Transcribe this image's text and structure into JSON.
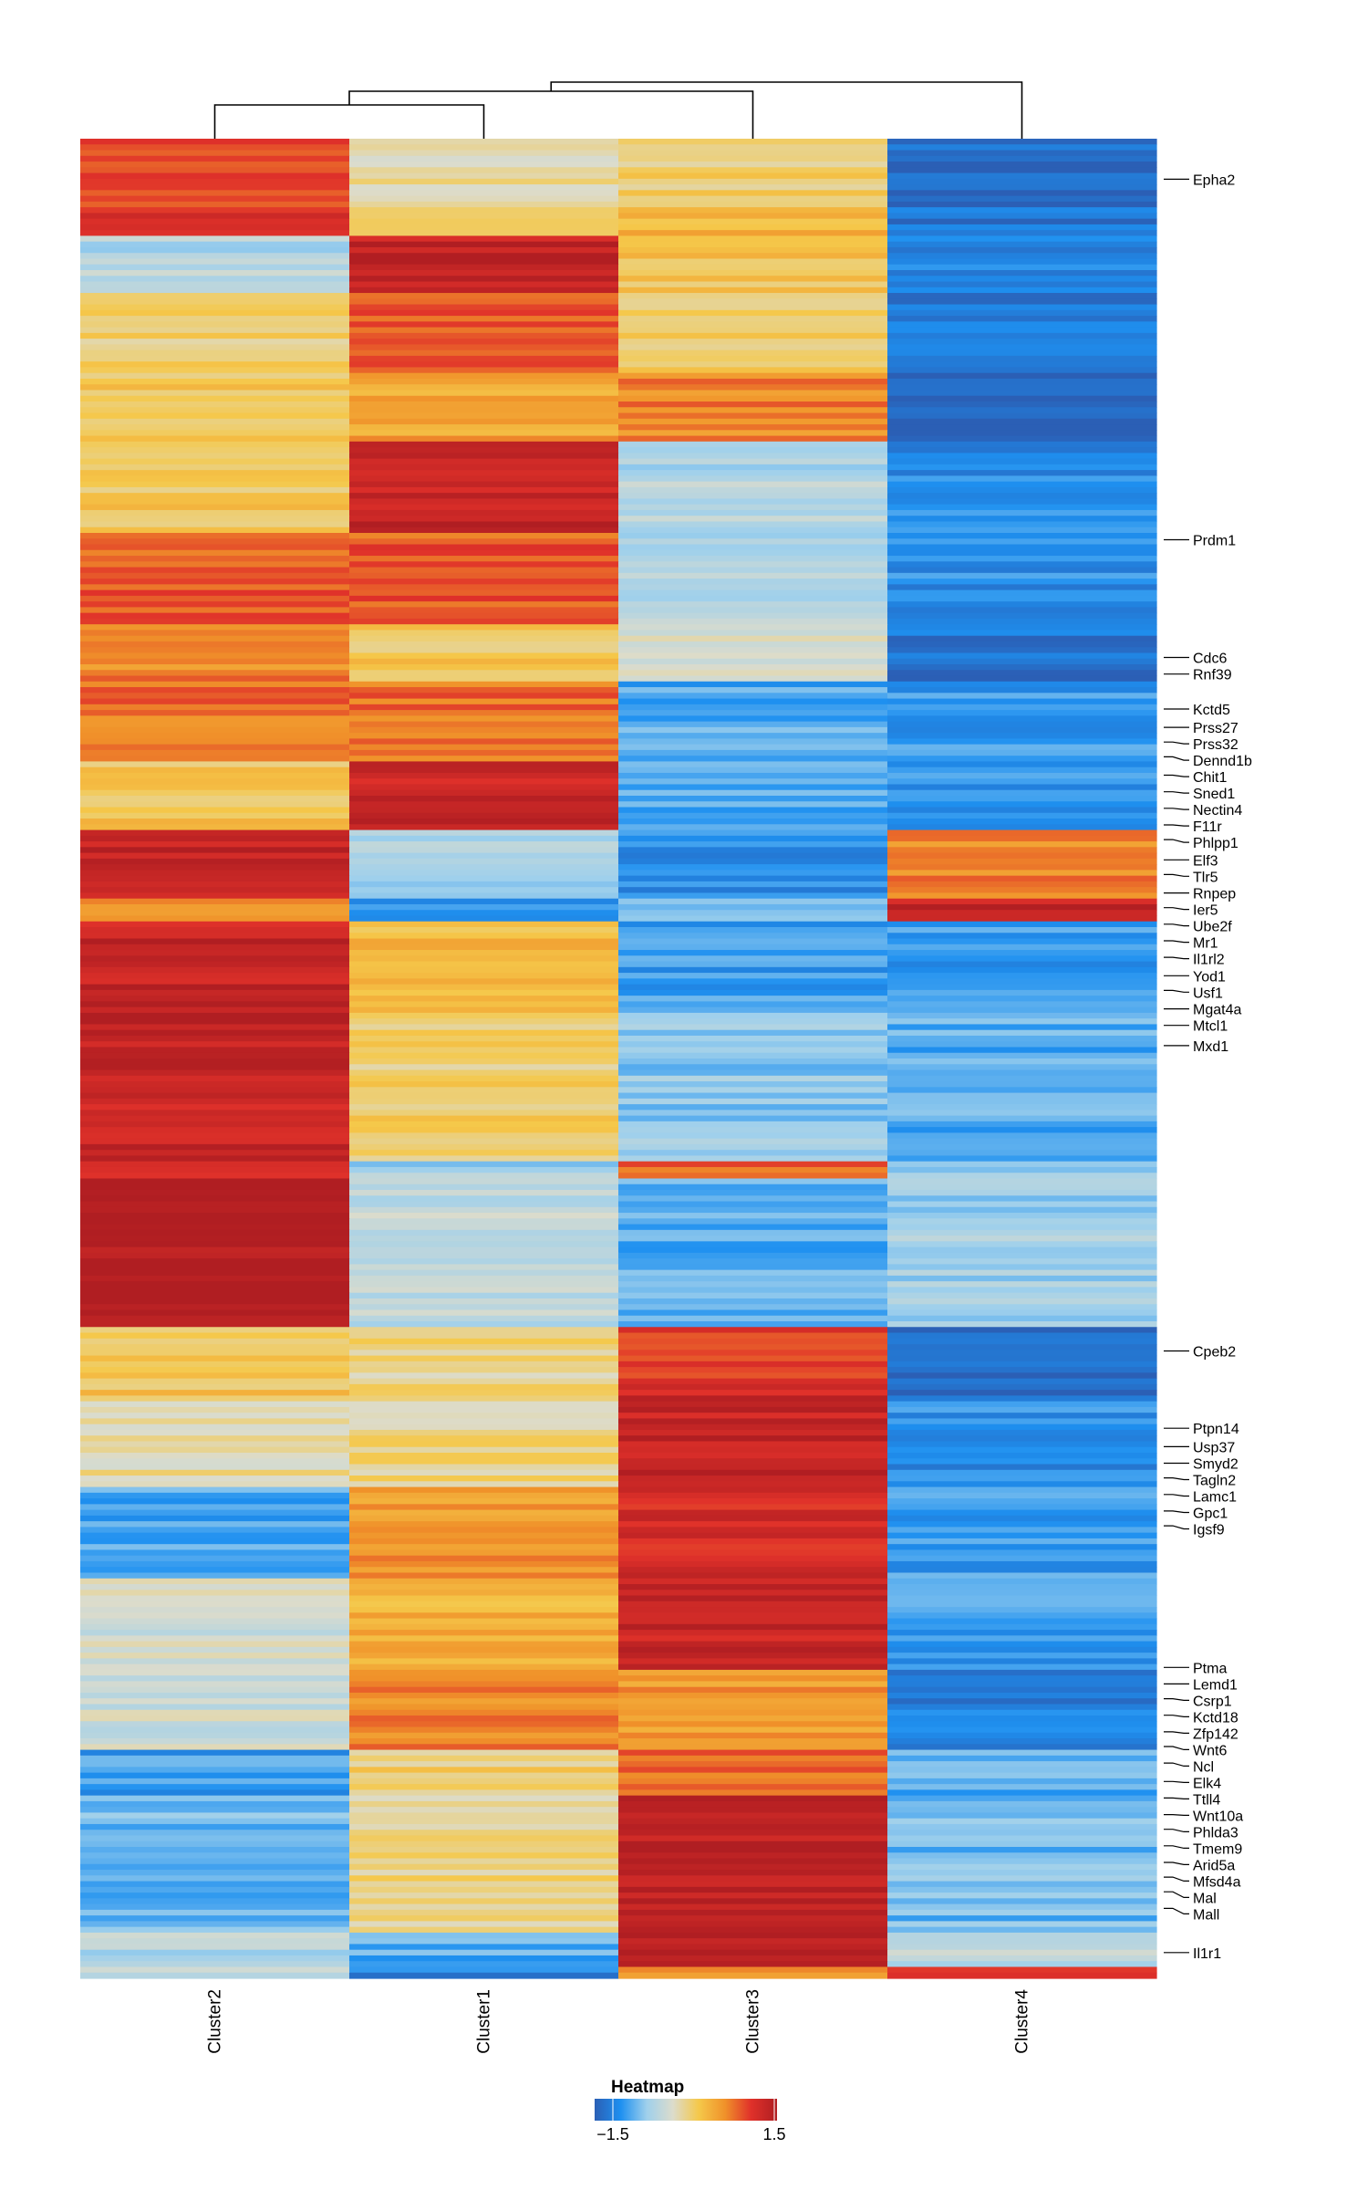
{
  "chart_data": {
    "type": "heatmap",
    "title": "",
    "legend": {
      "title": "Heatmap",
      "min": -1.5,
      "max": 1.5,
      "min_label": "−1.5",
      "max_label": "1.5",
      "placement": "bottom-center",
      "colors": [
        "#2b5fb5",
        "#1e90f0",
        "#9fd0ec",
        "#dcdccc",
        "#f5c84a",
        "#f0922a",
        "#e0312a",
        "#b01e22"
      ]
    },
    "columns": [
      "Cluster2",
      "Cluster1",
      "Cluster3",
      "Cluster4"
    ],
    "dendrogram": "((Cluster2,Cluster1),Cluster3),Cluster4",
    "blocks": [
      {
        "rows": 12,
        "values": [
          0.9,
          -0.1,
          0.1,
          -1.4
        ]
      },
      {
        "rows": 5,
        "values": [
          1.2,
          0.0,
          0.4,
          -1.3
        ]
      },
      {
        "rows": 10,
        "values": [
          -0.5,
          1.3,
          0.2,
          -1.2
        ]
      },
      {
        "rows": 14,
        "values": [
          0.1,
          0.9,
          0.1,
          -1.3
        ]
      },
      {
        "rows": 12,
        "values": [
          0.2,
          0.5,
          0.7,
          -1.5
        ]
      },
      {
        "rows": 16,
        "values": [
          0.2,
          1.3,
          -0.5,
          -1.1
        ]
      },
      {
        "rows": 16,
        "values": [
          0.9,
          0.9,
          -0.5,
          -1.1
        ]
      },
      {
        "rows": 10,
        "values": [
          0.7,
          0.2,
          -0.2,
          -1.3
        ]
      },
      {
        "rows": 14,
        "values": [
          0.8,
          0.8,
          -0.9,
          -1.0
        ]
      },
      {
        "rows": 12,
        "values": [
          0.2,
          1.3,
          -0.9,
          -1.0
        ]
      },
      {
        "rows": 12,
        "values": [
          1.3,
          -0.6,
          -1.1,
          0.7
        ]
      },
      {
        "rows": 4,
        "values": [
          0.6,
          -1.1,
          -0.8,
          1.3
        ]
      },
      {
        "rows": 16,
        "values": [
          1.3,
          0.3,
          -1.0,
          -1.0
        ]
      },
      {
        "rows": 26,
        "values": [
          1.3,
          0.1,
          -0.7,
          -0.9
        ]
      },
      {
        "rows": 3,
        "values": [
          1.0,
          -0.6,
          0.9,
          -0.7
        ]
      },
      {
        "rows": 26,
        "values": [
          1.5,
          -0.4,
          -0.9,
          -0.6
        ]
      },
      {
        "rows": 12,
        "values": [
          0.2,
          0.0,
          1.1,
          -1.4
        ]
      },
      {
        "rows": 16,
        "values": [
          -0.1,
          0.0,
          1.3,
          -1.1
        ]
      },
      {
        "rows": 16,
        "values": [
          -0.9,
          0.6,
          1.2,
          -1.0
        ]
      },
      {
        "rows": 16,
        "values": [
          -0.3,
          0.4,
          1.3,
          -1.0
        ]
      },
      {
        "rows": 14,
        "values": [
          -0.3,
          0.7,
          0.6,
          -1.2
        ]
      },
      {
        "rows": 8,
        "values": [
          -1.0,
          0.1,
          0.8,
          -0.9
        ]
      },
      {
        "rows": 24,
        "values": [
          -0.8,
          0.0,
          1.4,
          -0.8
        ]
      },
      {
        "rows": 6,
        "values": [
          -0.5,
          -0.9,
          1.5,
          -0.4
        ]
      },
      {
        "rows": 2,
        "values": [
          -0.5,
          -1.2,
          0.6,
          1.1
        ]
      }
    ],
    "gene_labels": [
      "Epha2",
      "Prdm1",
      "Cdc6",
      "Rnf39",
      "Kctd5",
      "Prss27",
      "Prss32",
      "Dennd1b",
      "Chit1",
      "Sned1",
      "Nectin4",
      "F11r",
      "Phlpp1",
      "Elf3",
      "Tlr5",
      "Rnpep",
      "Ier5",
      "Ube2f",
      "Mr1",
      "Il1rl2",
      "Yod1",
      "Usf1",
      "Mgat4a",
      "Mtcl1",
      "Mxd1",
      "Cpeb2",
      "Ptpn14",
      "Usp37",
      "Smyd2",
      "Tagln2",
      "Lamc1",
      "Gpc1",
      "Igsf9",
      "Ptma",
      "Lemd1",
      "Csrp1",
      "Kctd18",
      "Zfp142",
      "Wnt6",
      "Ncl",
      "Elk4",
      "Ttll4",
      "Wnt10a",
      "Phlda3",
      "Tmem9",
      "Arid5a",
      "Mfsd4a",
      "Mal",
      "Mall",
      "Il1r1"
    ],
    "gene_row_fractions": [
      0.022,
      0.218,
      0.282,
      0.291,
      0.31,
      0.32,
      0.328,
      0.336,
      0.346,
      0.355,
      0.364,
      0.373,
      0.381,
      0.392,
      0.4,
      0.41,
      0.418,
      0.427,
      0.436,
      0.445,
      0.455,
      0.463,
      0.473,
      0.482,
      0.493,
      0.659,
      0.701,
      0.711,
      0.72,
      0.728,
      0.737,
      0.746,
      0.754,
      0.831,
      0.84,
      0.848,
      0.857,
      0.866,
      0.874,
      0.883,
      0.893,
      0.902,
      0.911,
      0.919,
      0.928,
      0.937,
      0.945,
      0.953,
      0.962,
      0.986
    ]
  }
}
